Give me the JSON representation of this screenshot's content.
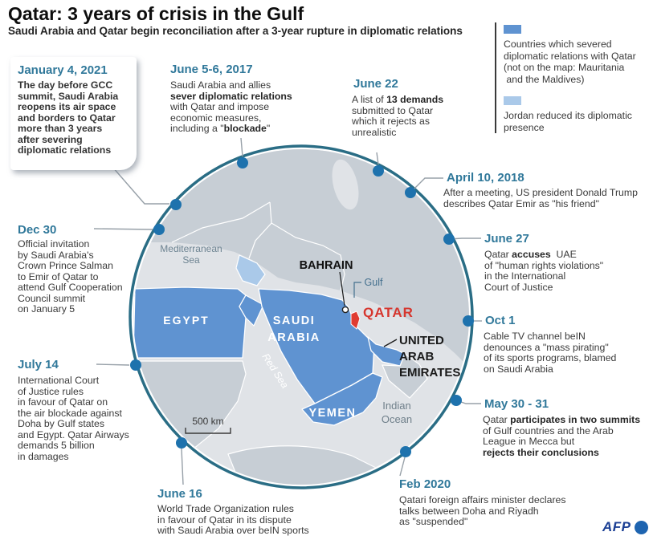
{
  "header": {
    "title": "Qatar: 3 years of crisis in the Gulf",
    "subtitle": "Saudi Arabia and Qatar begin reconciliation after a 3-year rupture in diplomatic relations"
  },
  "legend": {
    "severed_html": "Countries which severed<br>diplomatic relations with Qatar<br>(not on the map: Mauritania<br>&nbsp;and the Maldives)",
    "jordan_html": "Jordan reduced its diplomatic<br>presence"
  },
  "events": {
    "june56": {
      "date": "June 5-6, 2017",
      "body_html": "Saudi Arabia and allies<br><b>sever diplomatic relations</b><br>with Qatar and impose<br>economic measures,<br>including a \"<b>blockade</b>\""
    },
    "june22": {
      "date": "June 22",
      "body_html": "A list of <b>13 demands</b><br>submitted to Qatar<br>which it rejects as<br>unrealistic"
    },
    "april10": {
      "date": "April 10, 2018",
      "body_html": "After a meeting, US president Donald Trump<br>describes Qatar Emir as \"his friend\""
    },
    "june27": {
      "date": "June 27",
      "body_html": "Qatar <b>accuses</b>&nbsp; UAE<br>of \"human rights violations\"<br>in the International<br>Court of Justice"
    },
    "oct1": {
      "date": "Oct 1",
      "body_html": "Cable TV channel beIN<br>denounces a \"mass pirating\"<br>of its sports programs, blamed<br>on Saudi Arabia"
    },
    "may3031": {
      "date": "May 30 - 31",
      "body_html": "Qatar <b>participates in two summits</b><br>of Gulf countries and the Arab<br>League in Mecca but<br><b>rejects their conclusions</b>"
    },
    "feb2020": {
      "date": "Feb 2020",
      "body_html": "Qatari foreign affairs minister declares<br>talks between Doha and Riyadh<br>as \"suspended\""
    },
    "june16": {
      "date": "June 16",
      "body_html": "World Trade Organization rules<br>in favour of Qatar in its dispute<br>with Saudi Arabia over beIN sports"
    },
    "july14": {
      "date": "July 14",
      "body_html": "International Court<br>of Justice rules<br>in favour of Qatar on<br>the air blockade against<br>Doha by Gulf states<br>and Egypt. Qatar Airways<br>demands 5 billion<br>in damages"
    },
    "dec30": {
      "date": "Dec 30",
      "body_html": "Official invitation<br>by Saudi Arabia's<br>Crown Prince Salman<br>to Emir of Qatar to<br>attend Gulf Cooperation<br>Council summit<br>on January 5"
    },
    "jan4": {
      "date": "January 4, 2021",
      "body_html": "The day before GCC<br>summit, Saudi Arabia<br>reopens its air space<br>and borders to Qatar<br>more than 3 years<br>after severing<br>diplomatic relations"
    }
  },
  "map": {
    "labels": {
      "mediterranean_1": "Mediterranean",
      "mediterranean_2": "Sea",
      "egypt": "EGYPT",
      "saudi_1": "SAUDI",
      "saudi_2": "ARABIA",
      "bahrain": "BAHRAIN",
      "gulf": "Gulf",
      "qatar": "QATAR",
      "uae_1": "UNITED",
      "uae_2": "ARAB",
      "uae_3": "EMIRATES",
      "yemen": "YEMEN",
      "red_sea": "Red Sea",
      "indian_1": "Indian",
      "indian_2": "Ocean",
      "scale": "500 km"
    }
  },
  "footer": {
    "logo": "AFP"
  },
  "colors": {
    "accent_teal": "#30789a",
    "timeline_arc": "#2a6d85",
    "timeline_dot": "#1e72ad",
    "severed_country_blue": "#5f93d1",
    "jordan_light_blue": "#aac9e9",
    "land_gray": "#c7ced5",
    "sea_gray": "#e0e3e7",
    "qatar_red": "#d6362e",
    "afp_blue": "#1b3f94"
  }
}
